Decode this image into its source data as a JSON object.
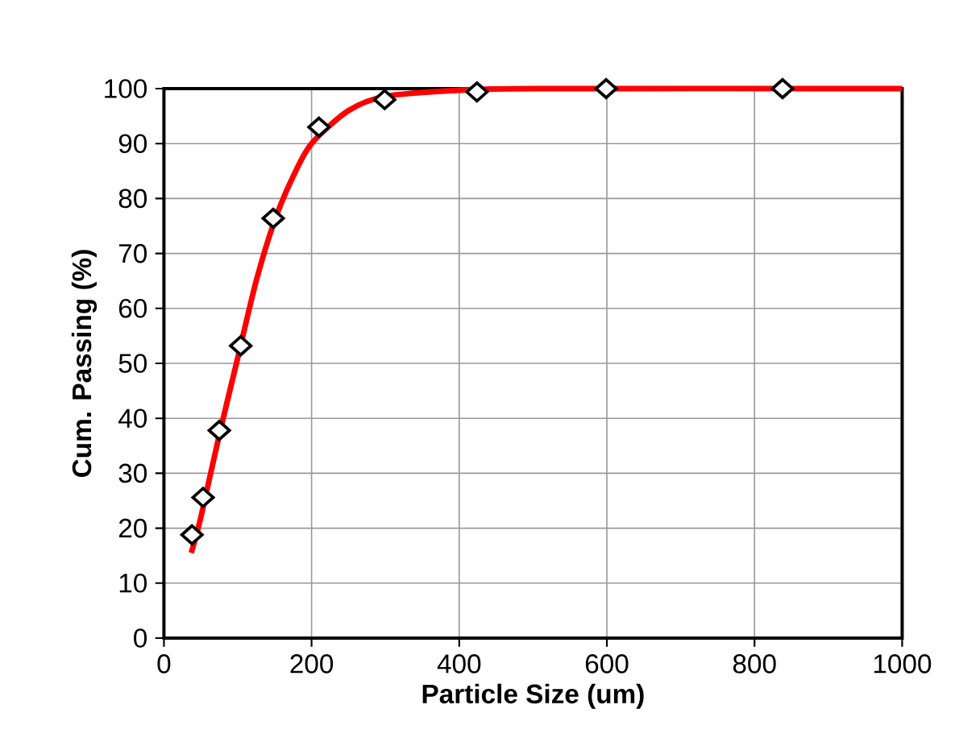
{
  "chart_data": {
    "type": "scatter",
    "xlabel": "Particle Size (um)",
    "ylabel": "Cum. Passing (%)",
    "xlim": [
      0,
      1000
    ],
    "xticks": [
      0,
      200,
      400,
      600,
      800,
      1000
    ],
    "ylim": [
      0,
      100
    ],
    "yticks": [
      0,
      10,
      20,
      30,
      40,
      50,
      60,
      70,
      80,
      90,
      100
    ],
    "grid": true,
    "series": [
      {
        "type": "line",
        "color": "#ff0000",
        "marker": "none",
        "line_style": "solid",
        "x": [
          37,
          50,
          75,
          100,
          125,
          150,
          175,
          200,
          250,
          300,
          400,
          500,
          1000
        ],
        "values": [
          15.5,
          22,
          37,
          51,
          65,
          76,
          84,
          90,
          96,
          98.6,
          99.7,
          100,
          100
        ]
      },
      {
        "color": "#000000",
        "marker": "diamond",
        "x": [
          38,
          53,
          75,
          104,
          148,
          210,
          299,
          424,
          599,
          838
        ],
        "values": [
          18.8,
          25.6,
          37.8,
          53.2,
          76.4,
          93.0,
          98.0,
          99.4,
          100,
          100
        ]
      }
    ]
  }
}
